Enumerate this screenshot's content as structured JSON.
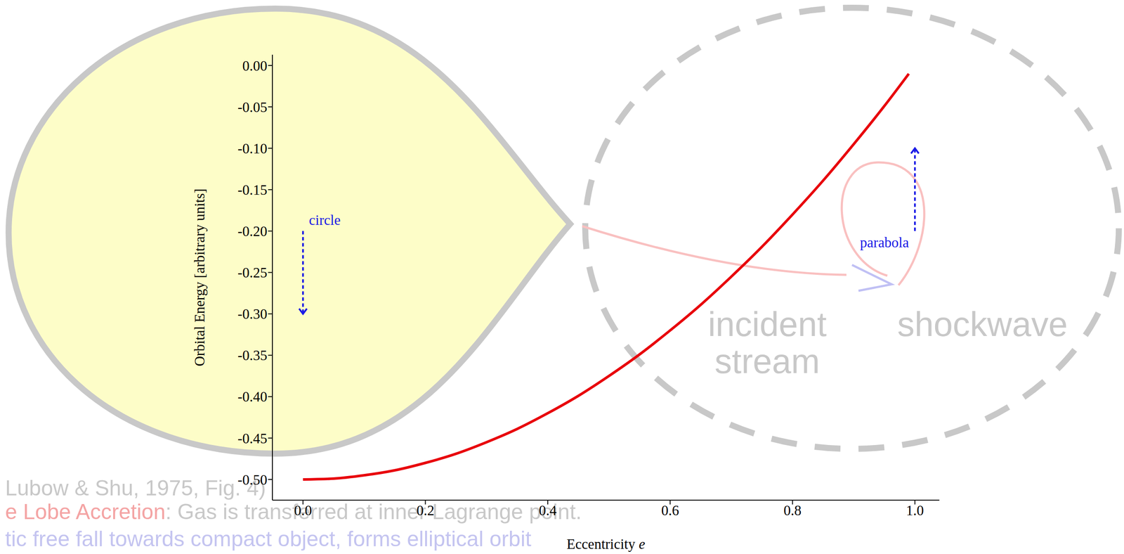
{
  "chart_data": {
    "type": "line",
    "x_label": "Eccentricity e",
    "y_label": "Orbital Energy [arbitrary units]",
    "color": "#e8000b",
    "x": [
      0,
      0.05,
      0.1,
      0.15,
      0.2,
      0.25,
      0.3,
      0.35,
      0.4,
      0.45,
      0.5,
      0.55,
      0.6,
      0.65,
      0.7,
      0.75,
      0.8,
      0.85,
      0.9,
      0.95,
      0.99
    ],
    "values": [
      -0.5,
      -0.499,
      -0.495,
      -0.489,
      -0.48,
      -0.469,
      -0.455,
      -0.439,
      -0.42,
      -0.399,
      -0.375,
      -0.349,
      -0.32,
      -0.289,
      -0.255,
      -0.219,
      -0.18,
      -0.139,
      -0.095,
      -0.049,
      -0.01
    ],
    "xlim": [
      -0.05,
      1.04
    ],
    "ylim": [
      -0.525,
      0.013
    ],
    "xticks": [
      {
        "value": 0,
        "label": "0.0"
      },
      {
        "value": 0.2,
        "label": "0.2"
      },
      {
        "value": 0.4,
        "label": "0.4"
      },
      {
        "value": 0.6,
        "label": "0.6"
      },
      {
        "value": 0.8,
        "label": "0.8"
      },
      {
        "value": 1,
        "label": "1.0"
      }
    ],
    "yticks": [
      {
        "value": 0,
        "label": "0.00"
      },
      {
        "value": -0.05,
        "label": "-0.05"
      },
      {
        "value": -0.1,
        "label": "-0.10"
      },
      {
        "value": -0.15,
        "label": "-0.15"
      },
      {
        "value": -0.2,
        "label": "-0.20"
      },
      {
        "value": -0.25,
        "label": "-0.25"
      },
      {
        "value": -0.3,
        "label": "-0.30"
      },
      {
        "value": -0.35,
        "label": "-0.35"
      },
      {
        "value": -0.4,
        "label": "-0.40"
      },
      {
        "value": -0.45,
        "label": "-0.45"
      },
      {
        "value": -0.5,
        "label": "-0.50"
      }
    ],
    "annotations": [
      {
        "text": "circle",
        "x": 0,
        "y_from": -0.2,
        "y_to": -0.3,
        "color": "#1a1ae6"
      },
      {
        "text": "parabola",
        "x": 1,
        "y_from": -0.2,
        "y_to": -0.1,
        "color": "#1a1ae6"
      }
    ]
  },
  "background": {
    "stream_label": "incident stream",
    "shock_label": "shockwave",
    "caption": [
      [
        "Lubow & Shu, 1975, Fig. 4)"
      ],
      [
        "e Lobe Accretion",
        ": Gas is transferred at inner Lagrange point."
      ],
      [
        "tic free fall towards compact object, forms elliptical orbit"
      ]
    ]
  }
}
